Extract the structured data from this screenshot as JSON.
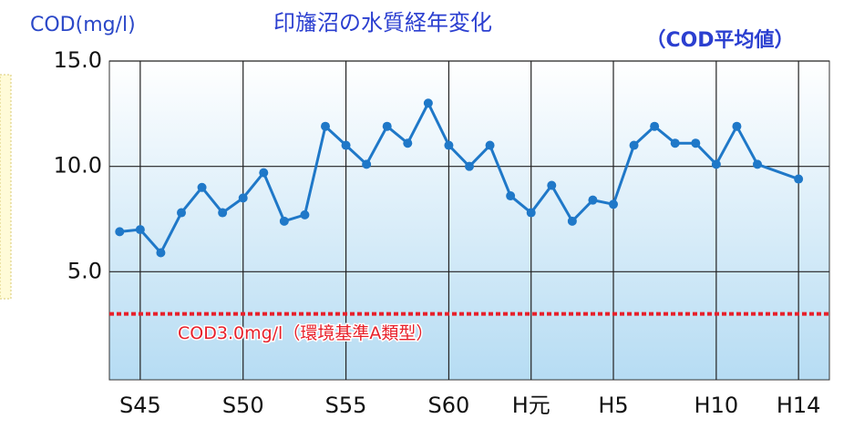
{
  "chart_data": {
    "type": "line",
    "title": "印旛沼の水質経年変化",
    "subtitle": "（COD平均値）",
    "y_label": "COD(mg/l)",
    "x": [
      1969,
      1970,
      1971,
      1972,
      1973,
      1974,
      1975,
      1976,
      1977,
      1978,
      1979,
      1980,
      1981,
      1982,
      1983,
      1984,
      1985,
      1986,
      1987,
      1988,
      1989,
      1990,
      1991,
      1992,
      1993,
      1994,
      1995,
      1996,
      1997,
      1998,
      1999,
      2000,
      2002
    ],
    "series": [
      {
        "name": "COD",
        "color": "#1f78c8",
        "values": [
          6.9,
          7.0,
          5.9,
          7.8,
          9.0,
          7.8,
          8.5,
          9.7,
          7.4,
          7.7,
          11.9,
          11.0,
          10.1,
          11.9,
          11.1,
          13.0,
          11.0,
          10.0,
          11.0,
          8.6,
          7.8,
          9.1,
          7.4,
          8.4,
          8.2,
          11.0,
          11.9,
          11.1,
          11.1,
          10.1,
          11.9,
          10.1,
          9.4
        ]
      }
    ],
    "xlim": [
      1968.5,
      2003.5
    ],
    "xticks": [
      {
        "value": 1970,
        "label": "S45"
      },
      {
        "value": 1975,
        "label": "S50"
      },
      {
        "value": 1980,
        "label": "S55"
      },
      {
        "value": 1985,
        "label": "S60"
      },
      {
        "value": 1989,
        "label": "H元"
      },
      {
        "value": 1993,
        "label": "H5"
      },
      {
        "value": 1998,
        "label": "H10"
      },
      {
        "value": 2002,
        "label": "H14"
      }
    ],
    "ylim": [
      0,
      15
    ],
    "yticks": [
      {
        "value": 5,
        "label": "5.0"
      },
      {
        "value": 10,
        "label": "10.0"
      },
      {
        "value": 15,
        "label": "15.0"
      }
    ],
    "grid": true,
    "reference_line": {
      "value": 3,
      "label": "COD3.0mg/l（環境基準A類型）",
      "color": "#e8202a"
    }
  }
}
